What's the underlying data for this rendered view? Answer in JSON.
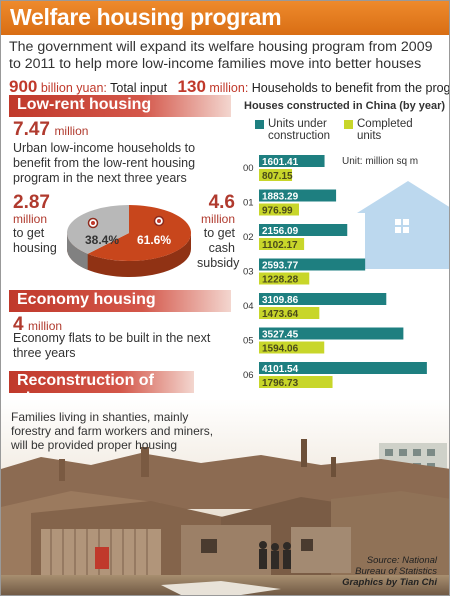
{
  "title": "Welfare housing program",
  "intro": "The government will expand its welfare housing program from 2009 to 2011 to help more low-income families move into better houses",
  "totals": {
    "input_value": "900",
    "input_unit": "billion yuan:",
    "input_label": "Total input",
    "households_value": "130",
    "households_unit": "million:",
    "households_label": "Households to benefit from the program"
  },
  "low_rent": {
    "heading": "Low-rent housing",
    "value": "7.47",
    "unit": "million",
    "desc": "Urban low-income households to benefit from the low-rent housing program in the next three years",
    "left_value": "2.87",
    "left_unit": "million",
    "left_label_1": "to get",
    "left_label_2": "housing",
    "right_value": "4.6",
    "right_unit": "million",
    "right_label_1": "to get",
    "right_label_2": "cash",
    "right_label_3": "subsidy",
    "pie_left_pct_label": "38.4%",
    "pie_right_pct_label": "61.6%",
    "pie_left_share": 38.4,
    "pie_right_share": 61.6,
    "pie_left_color": "#b8b8b8",
    "pie_right_color": "#c8461c"
  },
  "economy": {
    "heading": "Economy housing",
    "value": "4",
    "unit": "million",
    "desc": "Economy flats to be built in the next three years"
  },
  "slums": {
    "heading": "Reconstruction of slums",
    "desc": "Families living in shanties, mainly forestry and farm workers and miners, will be provided proper housing"
  },
  "chart_data": {
    "type": "bar",
    "title": "Houses constructed in China (by year)",
    "unit_note": "Unit: million sq m",
    "categories": [
      "00",
      "01",
      "02",
      "03",
      "04",
      "05",
      "06"
    ],
    "series": [
      {
        "name": "Units under construction",
        "color": "#1e7f80",
        "values": [
          1601.41,
          1883.29,
          2156.09,
          2593.77,
          3109.86,
          3527.45,
          4101.54
        ],
        "labels": [
          "1601.41",
          "1883.29",
          "2156.09",
          "2593.77",
          "3109.86",
          "3527.45",
          "4101.54"
        ]
      },
      {
        "name": "Completed units",
        "color": "#c8d62a",
        "values": [
          807.15,
          976.99,
          1102.17,
          1228.28,
          1473.64,
          1594.06,
          1796.73
        ],
        "labels": [
          "807.15",
          "976.99",
          "1102.17",
          "1228.28",
          "1473.64",
          "1594.06",
          "1796.73"
        ]
      }
    ],
    "orientation": "horizontal",
    "xlim": [
      0,
      4300
    ]
  },
  "legend": {
    "under_line1": "Units under",
    "under_line2": "construction",
    "completed_line1": "Completed",
    "completed_line2": "units"
  },
  "source_line1": "Source: National",
  "source_line2": "Bureau of Statistics",
  "graphics": "Graphics by Tian Chi"
}
